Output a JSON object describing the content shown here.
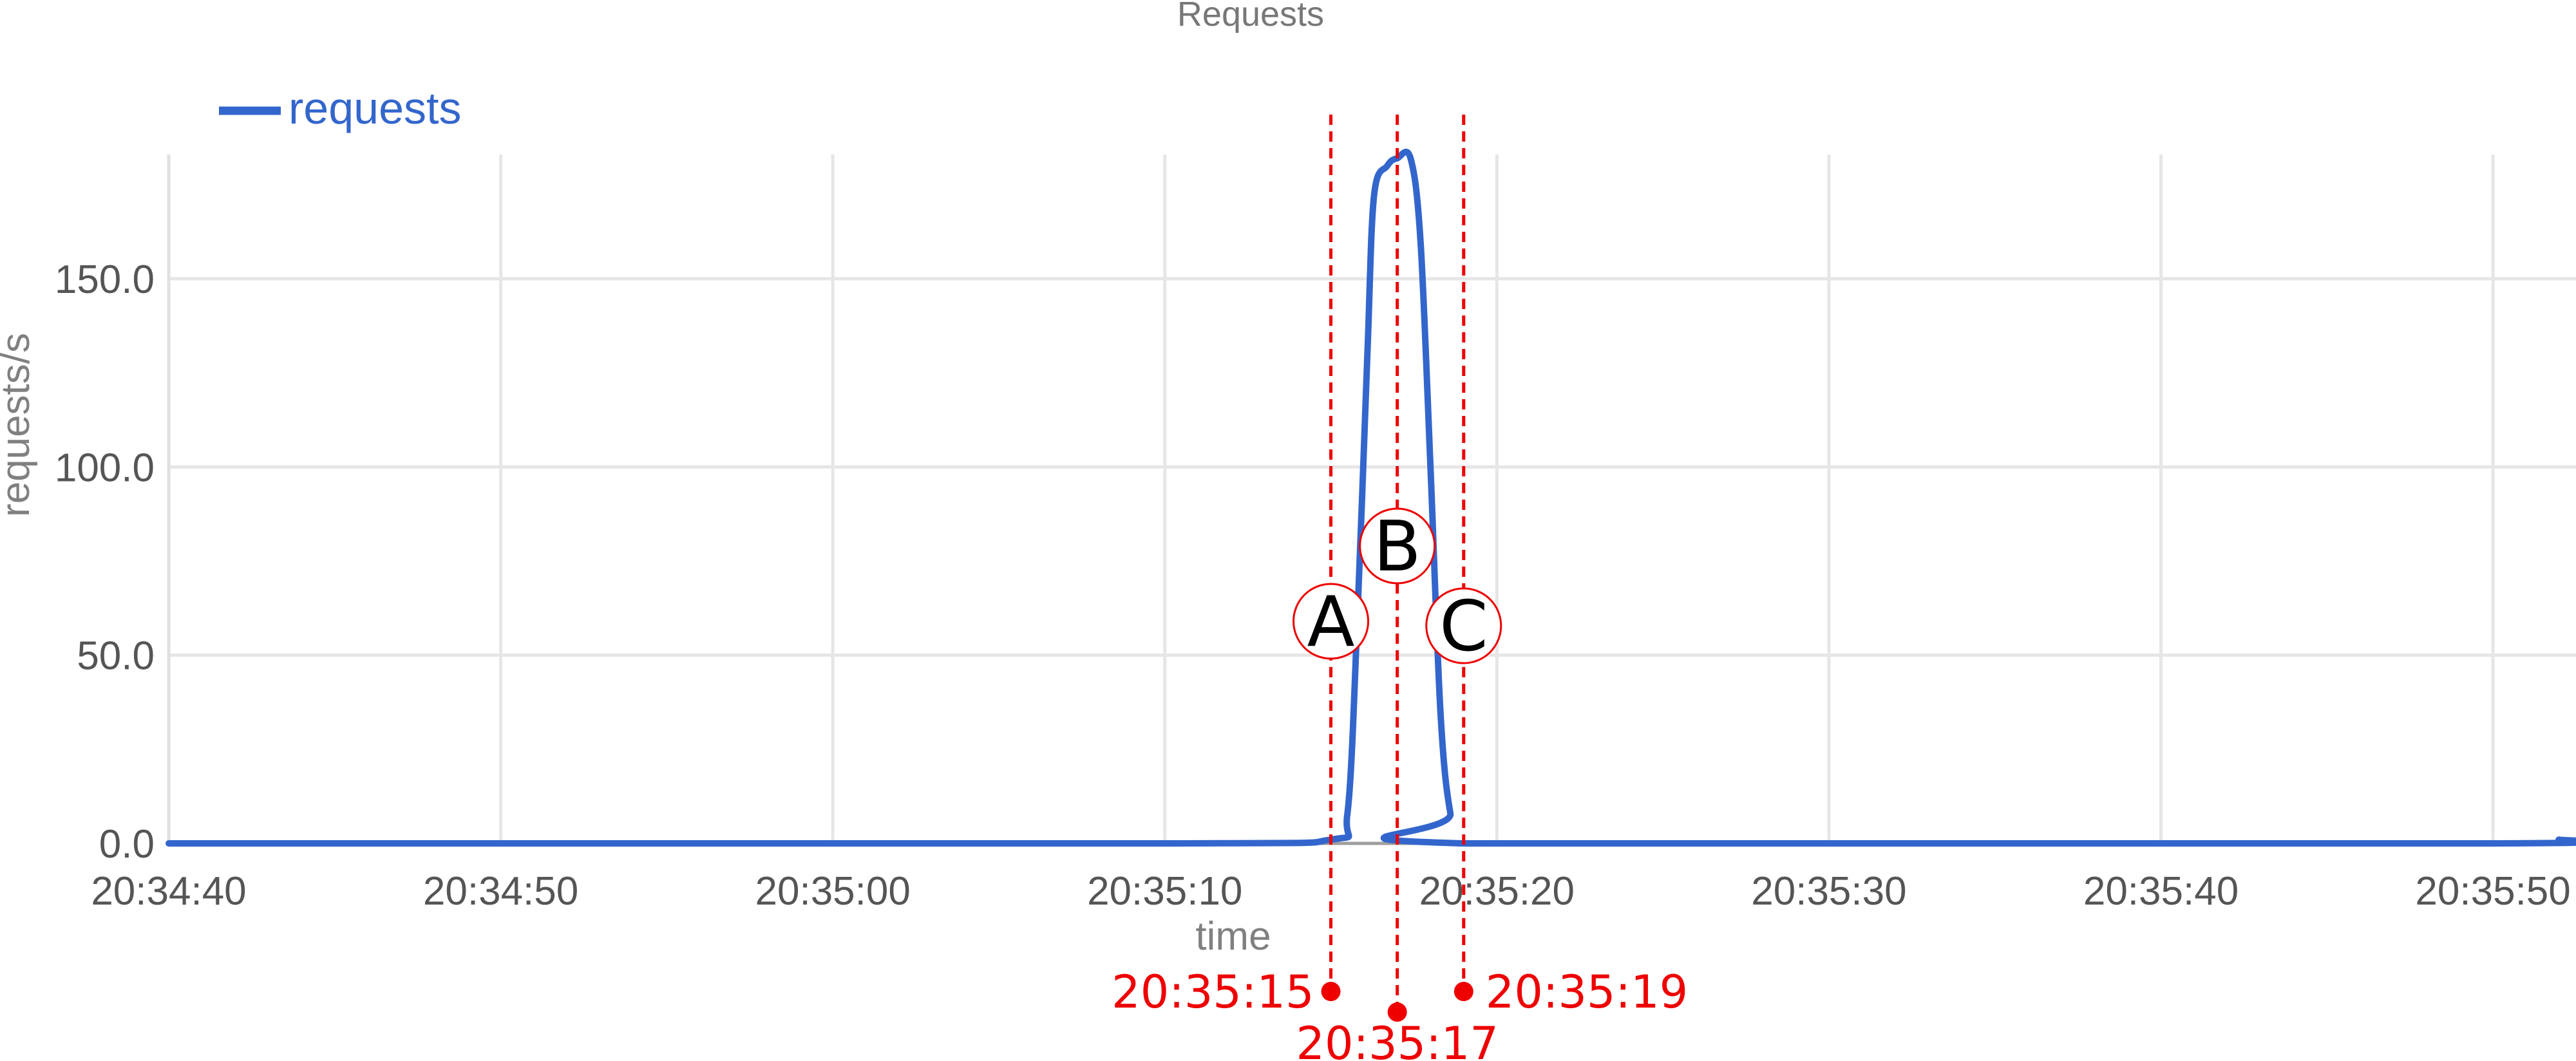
{
  "chart_data": {
    "type": "line",
    "title": "Requests",
    "xlabel": "time",
    "ylabel": "requests/s",
    "x_tick_labels": [
      "20:34:40",
      "20:34:50",
      "20:35:00",
      "20:35:10",
      "20:35:20",
      "20:35:30",
      "20:35:40",
      "20:35:50"
    ],
    "y_tick_labels": [
      "0.0",
      "50.0",
      "100.0",
      "150.0"
    ],
    "y_ticks": [
      0,
      50,
      100,
      150
    ],
    "xlim_seconds_after_20_34_40": [
      0,
      72.5
    ],
    "ylim": [
      0,
      183
    ],
    "grid": true,
    "legend_position": "top-left",
    "series": [
      {
        "name": "requests",
        "color": "#3366cc",
        "points": [
          {
            "time": "20:34:40",
            "value": 0
          },
          {
            "time": "20:35:10",
            "value": 0
          },
          {
            "time": "20:35:15",
            "value": 1
          },
          {
            "time": "20:35:15.5",
            "value": 8
          },
          {
            "time": "20:35:15.8",
            "value": 60
          },
          {
            "time": "20:35:16.1",
            "value": 130
          },
          {
            "time": "20:35:16.3",
            "value": 172
          },
          {
            "time": "20:35:16.7",
            "value": 180
          },
          {
            "time": "20:35:17",
            "value": 182
          },
          {
            "time": "20:35:17.4",
            "value": 182
          },
          {
            "time": "20:35:17.7",
            "value": 160
          },
          {
            "time": "20:35:18",
            "value": 100
          },
          {
            "time": "20:35:18.3",
            "value": 35
          },
          {
            "time": "20:35:18.6",
            "value": 8
          },
          {
            "time": "20:35:19",
            "value": 0
          },
          {
            "time": "20:35:50",
            "value": 0
          },
          {
            "time": "20:35:52",
            "value": 1
          }
        ]
      }
    ],
    "annotations": [
      {
        "marker": "A",
        "time_label": "20:35:15",
        "color": "#ee0000"
      },
      {
        "marker": "B",
        "time_label": "20:35:17",
        "color": "#ee0000"
      },
      {
        "marker": "C",
        "time_label": "20:35:19",
        "color": "#ee0000"
      }
    ]
  }
}
